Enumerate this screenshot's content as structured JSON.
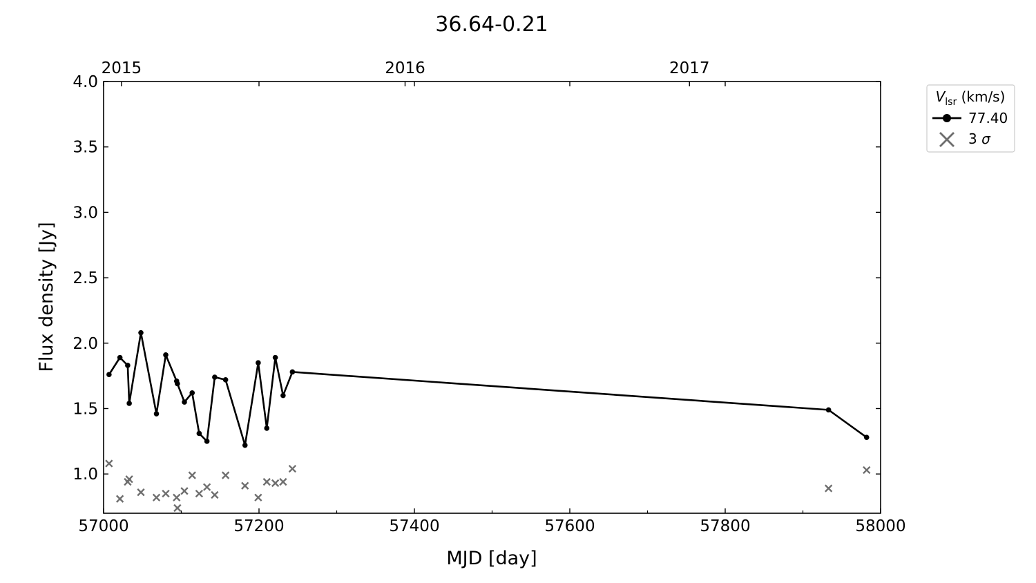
{
  "chart_data": {
    "type": "line",
    "title": "36.64-0.21",
    "xlabel": "MJD [day]",
    "ylabel": "Flux density [Jy]",
    "xlim": [
      57000,
      58000
    ],
    "ylim": [
      0.7,
      4.0
    ],
    "xticks": [
      "57000",
      "57200",
      "57400",
      "57600",
      "57800",
      "58000"
    ],
    "yticks": [
      "1.0",
      "1.5",
      "2.0",
      "2.5",
      "3.0",
      "3.5",
      "4.0"
    ],
    "top_axis": {
      "ticks": [
        {
          "label": "2015",
          "mjd": 57023
        },
        {
          "label": "2016",
          "mjd": 57388
        },
        {
          "label": "2017",
          "mjd": 57754
        }
      ]
    },
    "legend": {
      "title_var": "V",
      "title_sub": "lsr",
      "title_unit": " (km/s)",
      "position": "outside-top-right"
    },
    "series": [
      {
        "name": "77.40",
        "kind": "line-marker",
        "color": "#000000",
        "x": [
          57007,
          57021,
          57031,
          57033,
          57048,
          57068,
          57080,
          57094,
          57095,
          57104,
          57114,
          57123,
          57133,
          57143,
          57157,
          57182,
          57199,
          57210,
          57221,
          57231,
          57243,
          57933,
          57982
        ],
        "y": [
          1.76,
          1.89,
          1.83,
          1.54,
          2.08,
          1.46,
          1.91,
          1.71,
          1.69,
          1.55,
          1.62,
          1.31,
          1.25,
          1.74,
          1.72,
          1.22,
          1.85,
          1.35,
          1.89,
          1.6,
          1.78,
          1.49,
          1.28
        ]
      },
      {
        "name": "3 σ",
        "name_main": "3 ",
        "name_sym": "σ",
        "kind": "cross",
        "color": "#6e6e6e",
        "x": [
          57007,
          57021,
          57031,
          57033,
          57048,
          57068,
          57080,
          57094,
          57095,
          57104,
          57114,
          57123,
          57133,
          57143,
          57157,
          57182,
          57199,
          57210,
          57221,
          57231,
          57243,
          57933,
          57982
        ],
        "y": [
          1.08,
          0.81,
          0.94,
          0.96,
          0.86,
          0.82,
          0.85,
          0.82,
          0.74,
          0.87,
          0.99,
          0.85,
          0.9,
          0.84,
          0.99,
          0.91,
          0.82,
          0.94,
          0.93,
          0.94,
          1.04,
          0.89,
          1.03
        ]
      }
    ]
  }
}
